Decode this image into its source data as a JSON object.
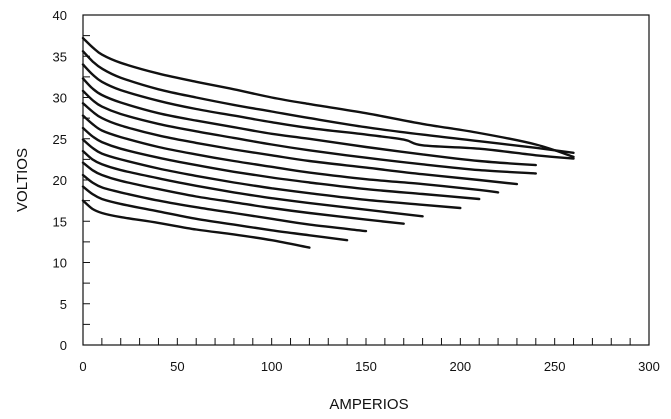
{
  "chart_data": {
    "type": "line",
    "title": "",
    "xlabel": "AMPERIOS",
    "ylabel": "VOLTIOS",
    "xlim": [
      0,
      300
    ],
    "ylim": [
      0,
      40
    ],
    "x_ticks": [
      "0",
      "50",
      "100",
      "150",
      "200",
      "250",
      "300"
    ],
    "y_ticks": [
      "0",
      "5",
      "10",
      "15",
      "20",
      "25",
      "30",
      "35",
      "40"
    ],
    "minor_tick_step_x": 10,
    "minor_tick_step_y": 2.5,
    "grid": false,
    "legend": "none",
    "line_color": "#111111",
    "series": [
      {
        "x": [
          0,
          5,
          10,
          20,
          40,
          60,
          80,
          100,
          120
        ],
        "y": [
          17.5,
          16.5,
          16.0,
          15.5,
          14.8,
          14.0,
          13.4,
          12.7,
          11.8
        ]
      },
      {
        "x": [
          0,
          5,
          10,
          20,
          40,
          60,
          80,
          100,
          120,
          140
        ],
        "y": [
          19.2,
          18.3,
          17.7,
          17.1,
          16.2,
          15.3,
          14.6,
          13.9,
          13.3,
          12.7
        ]
      },
      {
        "x": [
          0,
          5,
          10,
          20,
          40,
          60,
          80,
          100,
          120,
          150
        ],
        "y": [
          20.6,
          19.7,
          19.1,
          18.5,
          17.5,
          16.7,
          16.0,
          15.3,
          14.6,
          13.8
        ]
      },
      {
        "x": [
          0,
          5,
          10,
          20,
          40,
          60,
          80,
          100,
          120,
          150,
          170
        ],
        "y": [
          22.1,
          21.2,
          20.6,
          19.9,
          18.9,
          18.0,
          17.3,
          16.6,
          16.0,
          15.2,
          14.7
        ]
      },
      {
        "x": [
          0,
          5,
          10,
          20,
          40,
          60,
          80,
          100,
          120,
          150,
          180
        ],
        "y": [
          23.5,
          22.5,
          21.9,
          21.2,
          20.2,
          19.3,
          18.5,
          17.8,
          17.2,
          16.4,
          15.6
        ]
      },
      {
        "x": [
          0,
          5,
          10,
          20,
          40,
          60,
          80,
          100,
          120,
          150,
          180,
          200
        ],
        "y": [
          24.9,
          23.9,
          23.2,
          22.5,
          21.4,
          20.5,
          19.7,
          19.0,
          18.4,
          17.6,
          17.0,
          16.6
        ]
      },
      {
        "x": [
          0,
          5,
          10,
          20,
          40,
          60,
          80,
          100,
          120,
          150,
          180,
          210
        ],
        "y": [
          26.3,
          25.3,
          24.6,
          23.8,
          22.7,
          21.8,
          21.0,
          20.3,
          19.7,
          18.9,
          18.3,
          17.7
        ]
      },
      {
        "x": [
          0,
          5,
          10,
          20,
          40,
          60,
          80,
          100,
          120,
          150,
          180,
          210,
          220
        ],
        "y": [
          27.8,
          26.8,
          26.0,
          25.2,
          24.0,
          23.1,
          22.3,
          21.6,
          20.9,
          20.1,
          19.5,
          18.8,
          18.5
        ]
      },
      {
        "x": [
          0,
          5,
          10,
          20,
          40,
          60,
          80,
          100,
          120,
          150,
          180,
          210,
          230
        ],
        "y": [
          29.3,
          28.3,
          27.5,
          26.6,
          25.4,
          24.5,
          23.7,
          23.0,
          22.3,
          21.5,
          20.7,
          20.0,
          19.5
        ]
      },
      {
        "x": [
          0,
          5,
          10,
          20,
          40,
          60,
          80,
          100,
          120,
          150,
          180,
          210,
          240
        ],
        "y": [
          30.8,
          29.7,
          28.9,
          28.0,
          26.8,
          25.9,
          25.1,
          24.3,
          23.6,
          22.7,
          21.9,
          21.2,
          20.8
        ]
      },
      {
        "x": [
          0,
          5,
          10,
          20,
          40,
          60,
          80,
          100,
          120,
          150,
          180,
          210,
          240
        ],
        "y": [
          32.3,
          31.1,
          30.3,
          29.4,
          28.1,
          27.2,
          26.4,
          25.6,
          25.0,
          24.0,
          23.1,
          22.3,
          21.8
        ]
      },
      {
        "x": [
          0,
          5,
          10,
          20,
          40,
          60,
          80,
          100,
          120,
          150,
          170,
          180,
          210,
          240,
          260
        ],
        "y": [
          34.0,
          32.8,
          31.9,
          30.9,
          29.6,
          28.6,
          27.8,
          27.0,
          26.3,
          25.5,
          24.9,
          24.2,
          23.8,
          23.0,
          22.6
        ]
      },
      {
        "x": [
          0,
          5,
          10,
          20,
          40,
          60,
          80,
          100,
          120,
          150,
          180,
          210,
          240,
          260
        ],
        "y": [
          35.6,
          34.4,
          33.5,
          32.4,
          31.0,
          30.0,
          29.1,
          28.3,
          27.5,
          26.4,
          25.5,
          24.7,
          23.9,
          23.3
        ]
      },
      {
        "x": [
          0,
          5,
          10,
          20,
          40,
          60,
          80,
          100,
          120,
          150,
          180,
          210,
          240,
          260
        ],
        "y": [
          37.2,
          36.1,
          35.2,
          34.2,
          32.9,
          31.9,
          31.0,
          30.0,
          29.2,
          28.1,
          26.8,
          25.7,
          24.3,
          22.8
        ]
      }
    ]
  }
}
